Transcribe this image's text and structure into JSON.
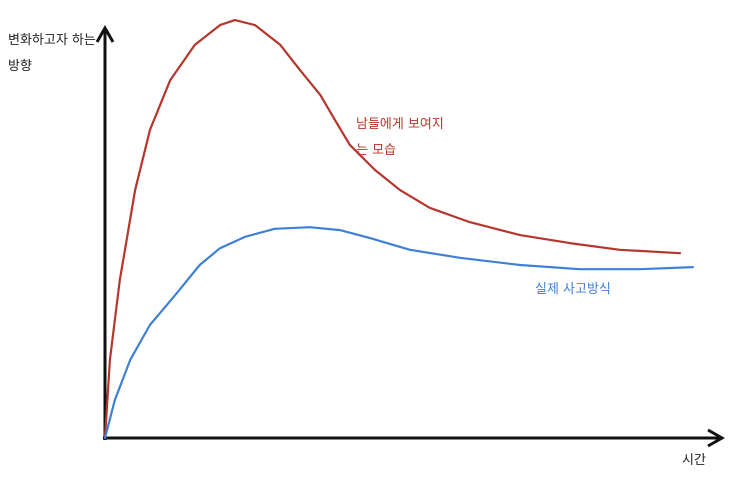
{
  "chart_data": {
    "type": "line",
    "y_label": "변화하고자 하는 방향",
    "x_label": "시간",
    "xlim": [
      0,
      100
    ],
    "ylim": [
      0,
      100
    ],
    "series": [
      {
        "name": "남들에게 보여지는 모습",
        "color": "#b5362c",
        "x": [
          0,
          0.8,
          2.4,
          4.9,
          7.3,
          10.6,
          14.6,
          18.7,
          21.1,
          24.4,
          28.5,
          31.7,
          35.0,
          37.4,
          39.8,
          43.9,
          48.0,
          52.8,
          59.3,
          67.5,
          75.6,
          83.7,
          93.5
        ],
        "values": [
          0,
          18.6,
          37.6,
          59.0,
          73.3,
          85.2,
          93.6,
          98.3,
          99.5,
          98.3,
          93.6,
          87.6,
          81.7,
          75.7,
          69.8,
          63.8,
          59.0,
          54.8,
          51.4,
          48.3,
          46.4,
          44.8,
          44.0
        ]
      },
      {
        "name": "실제 사고방식",
        "color": "#3f80d6",
        "x": [
          0,
          1.6,
          4.1,
          7.3,
          11.4,
          15.4,
          18.7,
          22.8,
          27.6,
          33.3,
          38.2,
          43.1,
          49.6,
          57.7,
          67.5,
          77.2,
          87.0,
          95.6
        ],
        "values": [
          0,
          9.0,
          18.6,
          26.9,
          34.0,
          41.2,
          45.2,
          47.9,
          49.8,
          50.2,
          49.5,
          47.6,
          44.8,
          42.9,
          41.2,
          40.2,
          40.2,
          40.7
        ]
      }
    ]
  }
}
